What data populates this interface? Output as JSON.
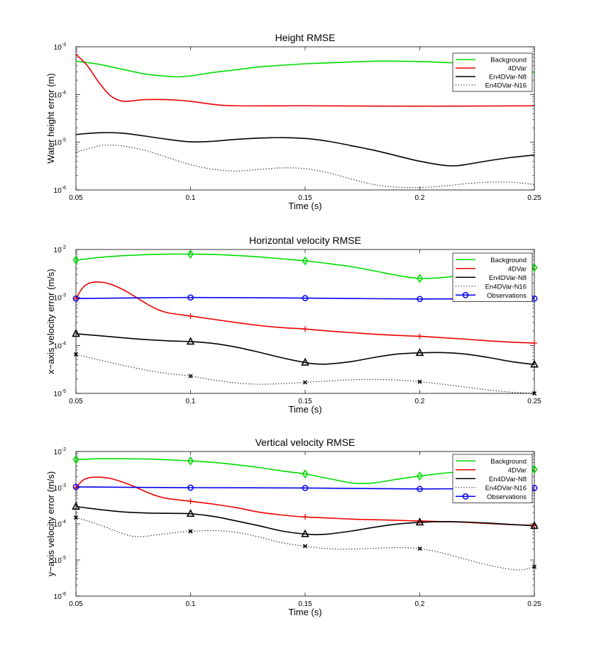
{
  "colors": {
    "Background": "#00dd00",
    "4DVar": "#ee0000",
    "En4DVar-N8": "#000000",
    "En4DVar-N16": "#000000",
    "Observations": "#0000ee"
  },
  "chart_data": [
    {
      "type": "line",
      "title": "Height RMSE",
      "xlabel": "Time (s)",
      "ylabel": "Water height error (m)",
      "xlim": [
        0.05,
        0.25
      ],
      "ylim_log10": [
        -6,
        -3
      ],
      "xticks": [
        "0.05",
        "0.1",
        "0.15",
        "0.2",
        "0.25"
      ],
      "yticks": [
        {
          "base": "10",
          "exp": "-6"
        },
        {
          "base": "10",
          "exp": "-5"
        },
        {
          "base": "10",
          "exp": "-4"
        },
        {
          "base": "10",
          "exp": "-3"
        }
      ],
      "legend": [
        "Background",
        "4DVar",
        "En4DVar-N8",
        "En4DVar-N16"
      ],
      "series": [
        {
          "name": "Background",
          "style": "solid",
          "x": [
            0.05,
            0.06,
            0.07,
            0.08,
            0.09,
            0.095,
            0.1,
            0.11,
            0.12,
            0.13,
            0.14,
            0.15,
            0.16,
            0.17,
            0.18,
            0.19,
            0.2,
            0.21,
            0.22,
            0.23,
            0.24,
            0.25
          ],
          "y": [
            0.0005,
            0.00043,
            0.00034,
            0.00027,
            0.00024,
            0.000235,
            0.000245,
            0.00029,
            0.00033,
            0.00038,
            0.00041,
            0.00044,
            0.00046,
            0.00048,
            0.0005,
            0.0005,
            0.00049,
            0.00047,
            0.00045,
            0.00042,
            0.00037,
            0.00029
          ]
        },
        {
          "name": "4DVar",
          "style": "solid",
          "x": [
            0.05,
            0.055,
            0.06,
            0.065,
            0.07,
            0.075,
            0.08,
            0.09,
            0.1,
            0.11,
            0.12,
            0.15,
            0.2,
            0.25
          ],
          "y": [
            0.0007,
            0.0004,
            0.00018,
            9.5e-05,
            7.3e-05,
            7.4e-05,
            7.8e-05,
            7.8e-05,
            7.2e-05,
            6.2e-05,
            5.8e-05,
            5.8e-05,
            5.7e-05,
            5.8e-05
          ]
        },
        {
          "name": "En4DVar-N8",
          "style": "solid",
          "x": [
            0.05,
            0.06,
            0.07,
            0.08,
            0.09,
            0.1,
            0.11,
            0.12,
            0.13,
            0.14,
            0.15,
            0.16,
            0.17,
            0.18,
            0.19,
            0.2,
            0.21,
            0.215,
            0.22,
            0.23,
            0.24,
            0.25
          ],
          "y": [
            1.45e-05,
            1.58e-05,
            1.55e-05,
            1.35e-05,
            1.15e-05,
            1.02e-05,
            1.05e-05,
            1.15e-05,
            1.22e-05,
            1.25e-05,
            1.2e-05,
            1.05e-05,
            8.5e-06,
            6.8e-06,
            5.2e-06,
            4e-06,
            3.3e-06,
            3.2e-06,
            3.4e-06,
            4.1e-06,
            4.8e-06,
            5.4e-06
          ]
        },
        {
          "name": "En4DVar-N16",
          "style": "dotted",
          "x": [
            0.05,
            0.06,
            0.065,
            0.07,
            0.08,
            0.09,
            0.1,
            0.11,
            0.12,
            0.13,
            0.14,
            0.15,
            0.16,
            0.17,
            0.18,
            0.19,
            0.2,
            0.21,
            0.22,
            0.23,
            0.24,
            0.25
          ],
          "y": [
            6.2e-06,
            8.4e-06,
            8.7e-06,
            8.4e-06,
            6.8e-06,
            4.8e-06,
            3.4e-06,
            2.7e-06,
            2.5e-06,
            2.7e-06,
            2.9e-06,
            2.8e-06,
            2.3e-06,
            1.7e-06,
            1.3e-06,
            1.15e-06,
            1.13e-06,
            1.2e-06,
            1.35e-06,
            1.45e-06,
            1.45e-06,
            1.3e-06
          ]
        }
      ]
    },
    {
      "type": "line",
      "title": "Horizontal velocity RMSE",
      "xlabel": "Time (s)",
      "ylabel": "x−axis velocity error (m/s)",
      "xlim": [
        0.05,
        0.25
      ],
      "ylim_log10": [
        -5,
        -2
      ],
      "xticks": [
        "0.05",
        "0.1",
        "0.15",
        "0.2",
        "0.25"
      ],
      "yticks": [
        {
          "base": "10",
          "exp": "-5"
        },
        {
          "base": "10",
          "exp": "-4"
        },
        {
          "base": "10",
          "exp": "-3"
        },
        {
          "base": "10",
          "exp": "-2"
        }
      ],
      "legend": [
        "Background",
        "4DVar",
        "En4DVar-N8",
        "En4DVar-N16",
        "Observations"
      ],
      "series": [
        {
          "name": "Background",
          "style": "solid",
          "marker": "diamond",
          "x": [
            0.05,
            0.06,
            0.07,
            0.08,
            0.09,
            0.1,
            0.11,
            0.12,
            0.13,
            0.14,
            0.15,
            0.16,
            0.17,
            0.18,
            0.19,
            0.2,
            0.21,
            0.22,
            0.23,
            0.24,
            0.25
          ],
          "y": [
            0.006,
            0.0068,
            0.0074,
            0.0078,
            0.008,
            0.008,
            0.0079,
            0.0075,
            0.007,
            0.0064,
            0.0058,
            0.0051,
            0.0044,
            0.0036,
            0.0029,
            0.0025,
            0.0026,
            0.003,
            0.0035,
            0.004,
            0.0042
          ],
          "markers_x": [
            0.05,
            0.1,
            0.15,
            0.2,
            0.25
          ],
          "markers_y": [
            0.006,
            0.008,
            0.0058,
            0.0025,
            0.0042
          ]
        },
        {
          "name": "4DVar",
          "style": "solid",
          "marker": "plus",
          "x": [
            0.05,
            0.053,
            0.056,
            0.06,
            0.065,
            0.07,
            0.075,
            0.08,
            0.085,
            0.09,
            0.1,
            0.11,
            0.12,
            0.13,
            0.14,
            0.15,
            0.16,
            0.17,
            0.18,
            0.19,
            0.2,
            0.21,
            0.22,
            0.23,
            0.24,
            0.25
          ],
          "y": [
            0.00095,
            0.0016,
            0.002,
            0.0021,
            0.0019,
            0.0015,
            0.0011,
            0.00078,
            0.00058,
            0.00048,
            0.00041,
            0.00035,
            0.0003,
            0.00026,
            0.000235,
            0.00022,
            0.0002,
            0.000185,
            0.000172,
            0.000162,
            0.000155,
            0.000145,
            0.000135,
            0.000125,
            0.000117,
            0.000112
          ],
          "markers_x": [
            0.05,
            0.1,
            0.15,
            0.2,
            0.25
          ],
          "markers_y": [
            0.00095,
            0.00041,
            0.00022,
            0.000155,
            0.000112
          ]
        },
        {
          "name": "En4DVar-N8",
          "style": "solid",
          "marker": "triangle",
          "x": [
            0.05,
            0.06,
            0.07,
            0.08,
            0.09,
            0.1,
            0.11,
            0.12,
            0.13,
            0.14,
            0.15,
            0.155,
            0.16,
            0.17,
            0.18,
            0.19,
            0.2,
            0.21,
            0.22,
            0.23,
            0.24,
            0.25
          ],
          "y": [
            0.000175,
            0.00016,
            0.000145,
            0.000133,
            0.000125,
            0.00012,
            0.00011,
            9.2e-05,
            7.2e-05,
            5.5e-05,
            4.4e-05,
            4.1e-05,
            4.1e-05,
            4.6e-05,
            5.6e-05,
            6.6e-05,
            7e-05,
            7.1e-05,
            6.6e-05,
            5.6e-05,
            4.6e-05,
            4e-05
          ],
          "markers_x": [
            0.05,
            0.1,
            0.15,
            0.2,
            0.25
          ],
          "markers_y": [
            0.000175,
            0.00012,
            4.4e-05,
            7e-05,
            4e-05
          ]
        },
        {
          "name": "En4DVar-N16",
          "style": "dotted",
          "marker": "x",
          "x": [
            0.05,
            0.06,
            0.07,
            0.08,
            0.09,
            0.1,
            0.11,
            0.12,
            0.13,
            0.14,
            0.15,
            0.16,
            0.17,
            0.18,
            0.19,
            0.2,
            0.21,
            0.22,
            0.23,
            0.24,
            0.25
          ],
          "y": [
            6.5e-05,
            5e-05,
            3.9e-05,
            3.1e-05,
            2.6e-05,
            2.3e-05,
            1.9e-05,
            1.65e-05,
            1.55e-05,
            1.6e-05,
            1.7e-05,
            1.82e-05,
            1.92e-05,
            1.95e-05,
            1.9e-05,
            1.75e-05,
            1.55e-05,
            1.35e-05,
            1.18e-05,
            1.06e-05,
            1e-05
          ],
          "markers_x": [
            0.05,
            0.1,
            0.15,
            0.2,
            0.25
          ],
          "markers_y": [
            6.5e-05,
            2.3e-05,
            1.7e-05,
            1.75e-05,
            1e-05
          ]
        },
        {
          "name": "Observations",
          "style": "solid",
          "marker": "circle",
          "x": [
            0.05,
            0.1,
            0.15,
            0.2,
            0.25
          ],
          "y": [
            0.00095,
            0.001,
            0.00097,
            0.00093,
            0.00095
          ],
          "markers_x": [
            0.05,
            0.1,
            0.15,
            0.2,
            0.25
          ],
          "markers_y": [
            0.00095,
            0.001,
            0.00097,
            0.00093,
            0.00095
          ]
        }
      ]
    },
    {
      "type": "line",
      "title": "Vertical velocity RMSE",
      "xlabel": "Time (s)",
      "ylabel": "y−axis velocity error (m/s)",
      "xlim": [
        0.05,
        0.25
      ],
      "ylim_log10": [
        -6,
        -2
      ],
      "xticks": [
        "0.05",
        "0.1",
        "0.15",
        "0.2",
        "0.25"
      ],
      "yticks": [
        {
          "base": "10",
          "exp": "-6"
        },
        {
          "base": "10",
          "exp": "-5"
        },
        {
          "base": "10",
          "exp": "-4"
        },
        {
          "base": "10",
          "exp": "-3"
        },
        {
          "base": "10",
          "exp": "-2"
        }
      ],
      "legend": [
        "Background",
        "4DVar",
        "En4DVar-N8",
        "En4DVar-N16",
        "Observations"
      ],
      "series": [
        {
          "name": "Background",
          "style": "solid",
          "marker": "diamond",
          "x": [
            0.05,
            0.06,
            0.07,
            0.08,
            0.09,
            0.1,
            0.11,
            0.12,
            0.13,
            0.14,
            0.15,
            0.16,
            0.17,
            0.175,
            0.18,
            0.19,
            0.2,
            0.21,
            0.22,
            0.23,
            0.24,
            0.25
          ],
          "y": [
            0.006,
            0.0063,
            0.0063,
            0.0062,
            0.0059,
            0.0055,
            0.005,
            0.0043,
            0.0036,
            0.0029,
            0.0024,
            0.0018,
            0.00135,
            0.0013,
            0.00135,
            0.0017,
            0.0021,
            0.0025,
            0.0028,
            0.003,
            0.0031,
            0.0032
          ],
          "markers_x": [
            0.05,
            0.1,
            0.15,
            0.2,
            0.25
          ],
          "markers_y": [
            0.006,
            0.0055,
            0.0024,
            0.0021,
            0.0032
          ]
        },
        {
          "name": "4DVar",
          "style": "solid",
          "marker": "plus",
          "x": [
            0.05,
            0.053,
            0.056,
            0.06,
            0.065,
            0.07,
            0.075,
            0.08,
            0.085,
            0.09,
            0.1,
            0.11,
            0.12,
            0.13,
            0.14,
            0.15,
            0.16,
            0.17,
            0.18,
            0.19,
            0.2,
            0.21,
            0.22,
            0.23,
            0.24,
            0.25
          ],
          "y": [
            0.001,
            0.0016,
            0.0019,
            0.00195,
            0.0018,
            0.00145,
            0.0011,
            0.0008,
            0.0006,
            0.0005,
            0.00042,
            0.00035,
            0.00028,
            0.00021,
            0.000175,
            0.000155,
            0.000145,
            0.000135,
            0.00013,
            0.000125,
            0.00012,
            0.000115,
            0.00011,
            0.000102,
            9.5e-05,
            9e-05
          ],
          "markers_x": [
            0.05,
            0.1,
            0.15,
            0.2,
            0.25
          ],
          "markers_y": [
            0.001,
            0.00042,
            0.000155,
            0.00012,
            9e-05
          ]
        },
        {
          "name": "En4DVar-N8",
          "style": "solid",
          "marker": "triangle",
          "x": [
            0.05,
            0.06,
            0.07,
            0.08,
            0.09,
            0.1,
            0.11,
            0.12,
            0.13,
            0.14,
            0.15,
            0.155,
            0.16,
            0.17,
            0.18,
            0.19,
            0.2,
            0.21,
            0.22,
            0.23,
            0.24,
            0.25
          ],
          "y": [
            0.0003,
            0.00025,
            0.000215,
            0.0002,
            0.000195,
            0.00019,
            0.00016,
            0.00012,
            8.8e-05,
            6.3e-05,
            5.2e-05,
            5e-05,
            5.2e-05,
            6.3e-05,
            8e-05,
            9.8e-05,
            0.00011,
            0.000115,
            0.000112,
            0.000105,
            9.6e-05,
            8.8e-05
          ],
          "markers_x": [
            0.05,
            0.1,
            0.15,
            0.2,
            0.25
          ],
          "markers_y": [
            0.0003,
            0.00019,
            5.2e-05,
            0.00011,
            8.8e-05
          ]
        },
        {
          "name": "En4DVar-N16",
          "style": "dotted",
          "marker": "x",
          "x": [
            0.05,
            0.06,
            0.07,
            0.075,
            0.08,
            0.09,
            0.1,
            0.11,
            0.12,
            0.13,
            0.14,
            0.15,
            0.16,
            0.17,
            0.18,
            0.19,
            0.2,
            0.21,
            0.22,
            0.23,
            0.24,
            0.245,
            0.25
          ],
          "y": [
            0.00015,
            9.5e-05,
            5.5e-05,
            4.5e-05,
            4.5e-05,
            5.4e-05,
            6.2e-05,
            6.5e-05,
            5.8e-05,
            4.3e-05,
            3e-05,
            2.4e-05,
            2.05e-05,
            2e-05,
            2.1e-05,
            2.2e-05,
            2.05e-05,
            1.55e-05,
            1.05e-05,
            7.2e-06,
            5.5e-06,
            5.4e-06,
            6.5e-06
          ],
          "markers_x": [
            0.05,
            0.1,
            0.15,
            0.2,
            0.25
          ],
          "markers_y": [
            0.00015,
            6.2e-05,
            2.4e-05,
            2.05e-05,
            6.5e-06
          ]
        },
        {
          "name": "Observations",
          "style": "solid",
          "marker": "circle",
          "x": [
            0.05,
            0.1,
            0.15,
            0.2,
            0.25
          ],
          "y": [
            0.00105,
            0.001,
            0.00098,
            0.00092,
            0.00098
          ],
          "markers_x": [
            0.05,
            0.1,
            0.15,
            0.2,
            0.25
          ],
          "markers_y": [
            0.00105,
            0.001,
            0.00098,
            0.00092,
            0.00098
          ]
        }
      ]
    }
  ]
}
